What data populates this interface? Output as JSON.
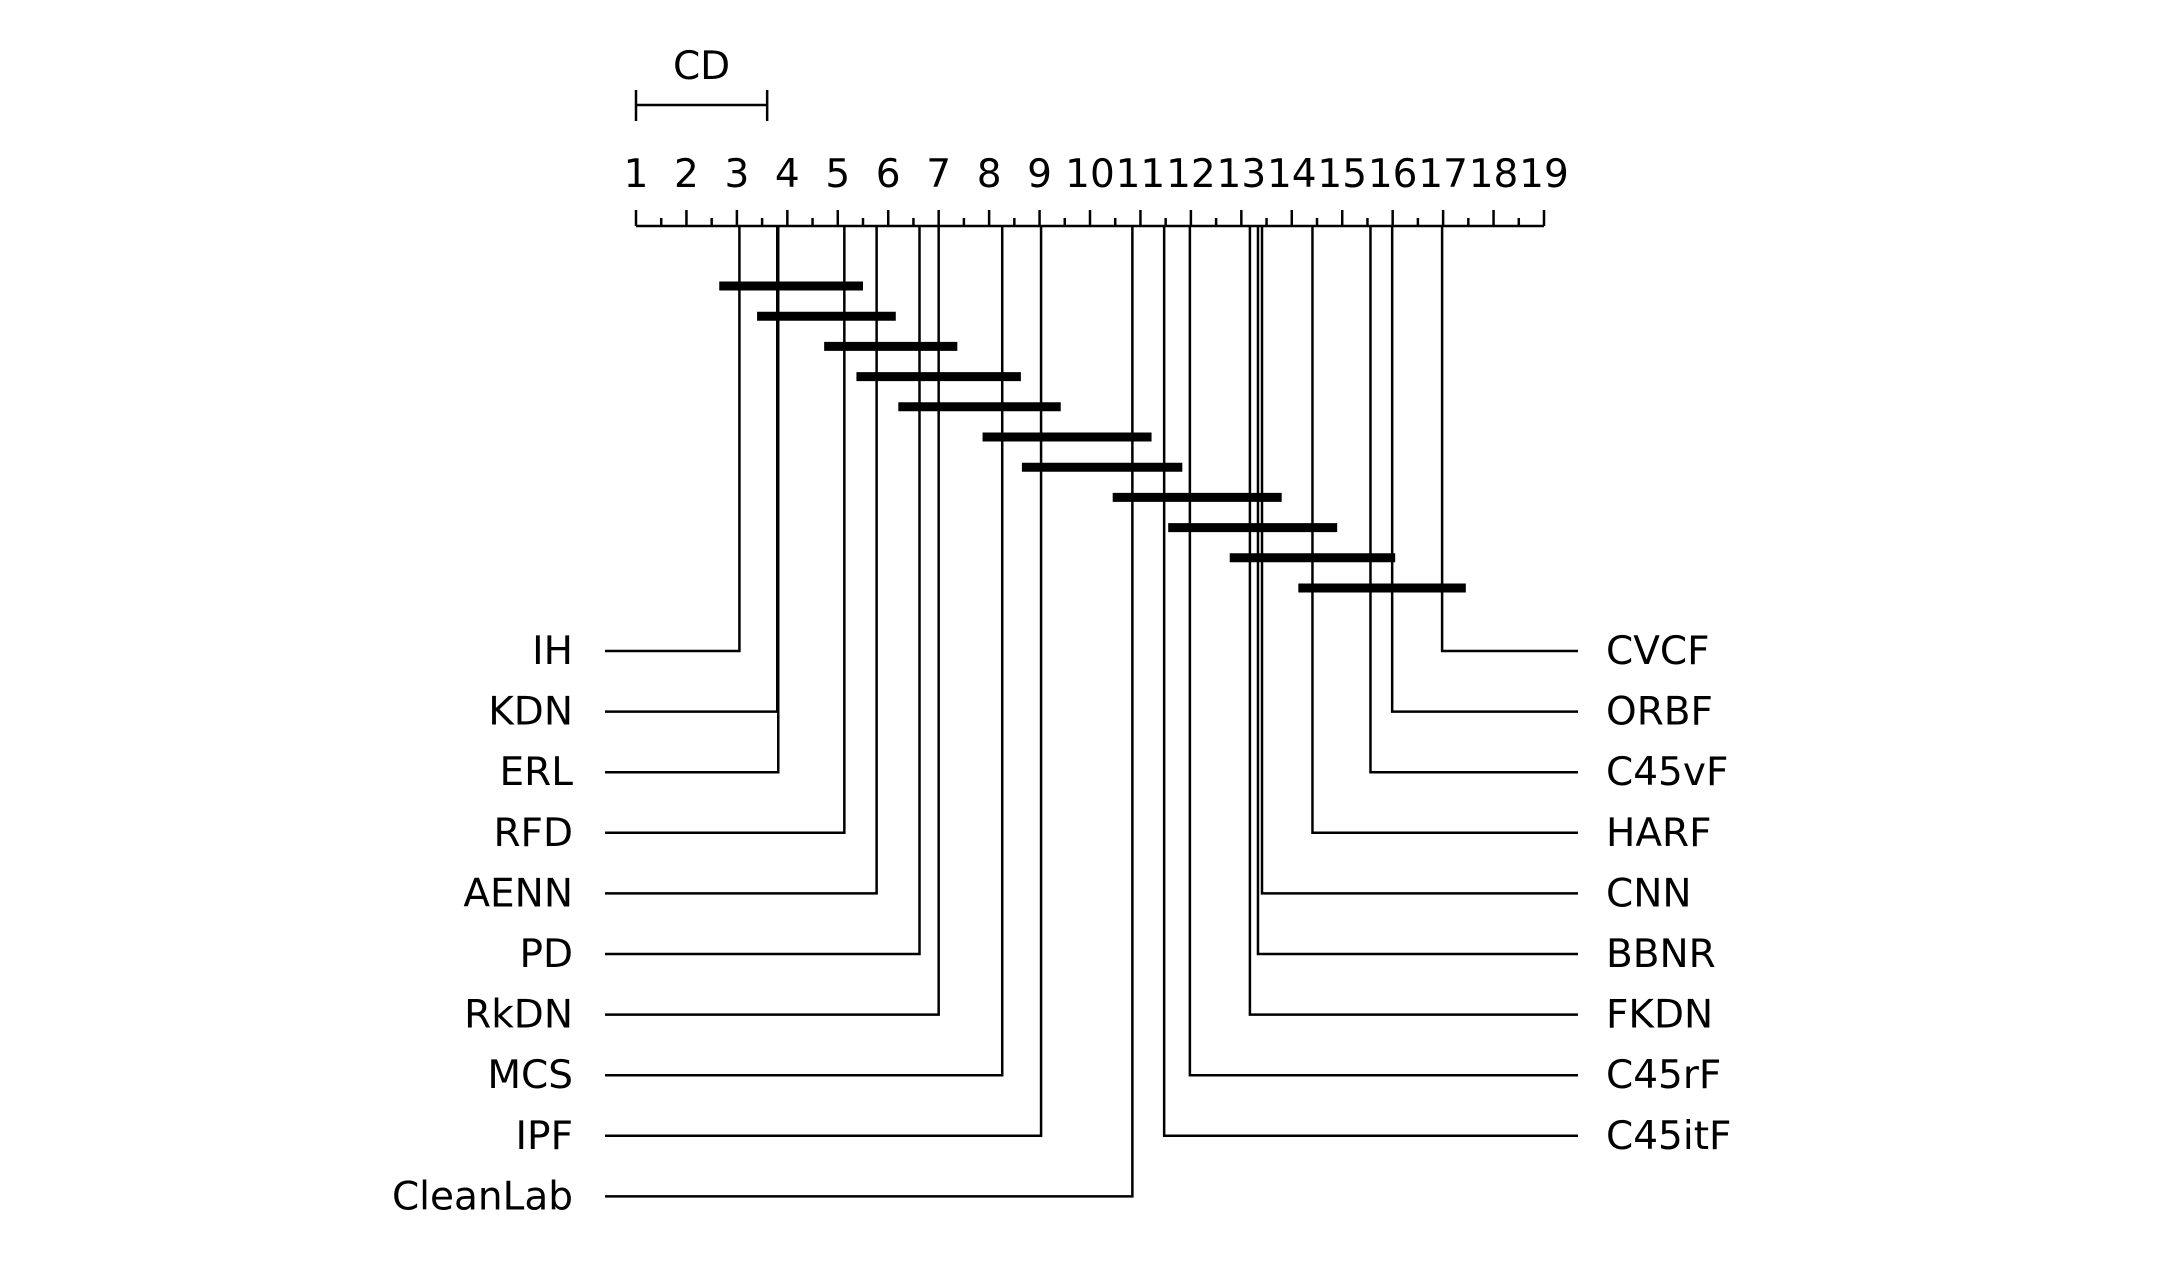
{
  "chart_data": {
    "type": "critical-difference-diagram",
    "title": "",
    "axis": {
      "min": 1,
      "max": 19,
      "tick_labels": [
        "1",
        "2",
        "3",
        "4",
        "5",
        "6",
        "7",
        "8",
        "9",
        "10",
        "11",
        "12",
        "13",
        "14",
        "15",
        "16",
        "17",
        "18",
        "19"
      ]
    },
    "cd": {
      "label": "CD",
      "value": 2.6
    },
    "left_methods": [
      {
        "name": "IH",
        "rank": 3.05
      },
      {
        "name": "KDN",
        "rank": 3.8
      },
      {
        "name": "ERL",
        "rank": 3.82
      },
      {
        "name": "RFD",
        "rank": 5.13
      },
      {
        "name": "AENN",
        "rank": 5.77
      },
      {
        "name": "PD",
        "rank": 6.62
      },
      {
        "name": "RkDN",
        "rank": 7.0
      },
      {
        "name": "MCS",
        "rank": 8.26
      },
      {
        "name": "IPF",
        "rank": 9.03
      },
      {
        "name": "CleanLab",
        "rank": 10.84
      }
    ],
    "right_methods": [
      {
        "name": "CVCF",
        "rank": 16.98
      },
      {
        "name": "ORBF",
        "rank": 15.99
      },
      {
        "name": "C45vF",
        "rank": 15.56
      },
      {
        "name": "HARF",
        "rank": 14.41
      },
      {
        "name": "CNN",
        "rank": 13.41
      },
      {
        "name": "BBNR",
        "rank": 13.33
      },
      {
        "name": "FKDN",
        "rank": 13.17
      },
      {
        "name": "C45rF",
        "rank": 11.98
      },
      {
        "name": "C45itF",
        "rank": 11.47
      }
    ],
    "cliques": [
      {
        "from": 2.65,
        "to": 5.5
      },
      {
        "from": 3.4,
        "to": 6.15
      },
      {
        "from": 4.73,
        "to": 7.37
      },
      {
        "from": 5.37,
        "to": 8.63
      },
      {
        "from": 6.2,
        "to": 9.42
      },
      {
        "from": 7.87,
        "to": 11.22
      },
      {
        "from": 8.65,
        "to": 11.83
      },
      {
        "from": 10.45,
        "to": 13.8
      },
      {
        "from": 11.55,
        "to": 14.9
      },
      {
        "from": 12.77,
        "to": 16.05
      },
      {
        "from": 14.13,
        "to": 17.45
      }
    ]
  }
}
